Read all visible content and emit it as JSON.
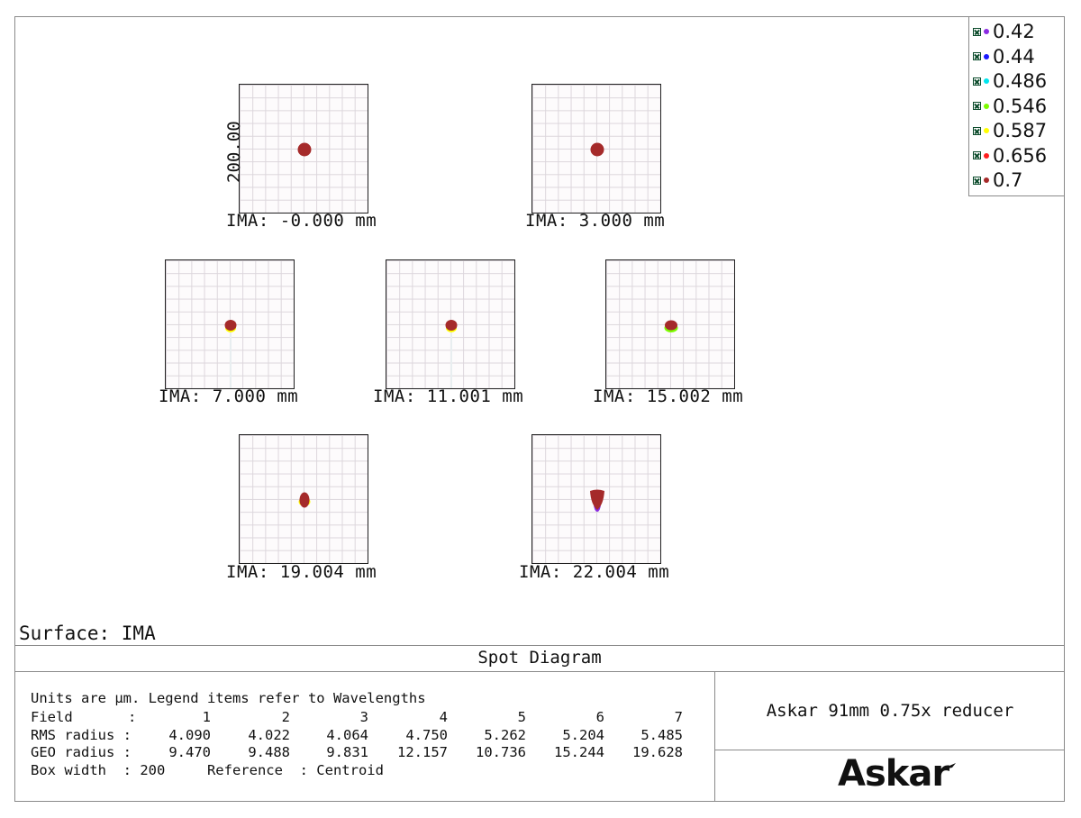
{
  "legend": {
    "items": [
      {
        "label": "0.42",
        "color": "#8a2be2"
      },
      {
        "label": "0.44",
        "color": "#1a1aff"
      },
      {
        "label": "0.486",
        "color": "#00e5ee"
      },
      {
        "label": "0.546",
        "color": "#7cfc00"
      },
      {
        "label": "0.587",
        "color": "#ffff00"
      },
      {
        "label": "0.656",
        "color": "#ff2020"
      },
      {
        "label": "0.7",
        "color": "#a52a2a"
      }
    ]
  },
  "scale_label": "200.00",
  "fields": [
    {
      "label": "IMA: -0.000 mm",
      "spot": "round"
    },
    {
      "label": "IMA: 3.000 mm",
      "spot": "round"
    },
    {
      "label": "IMA: 7.000 mm",
      "spot": "round-tail"
    },
    {
      "label": "IMA: 11.001 mm",
      "spot": "round-tail"
    },
    {
      "label": "IMA: 15.002 mm",
      "spot": "wide"
    },
    {
      "label": "IMA: 19.004 mm",
      "spot": "tall"
    },
    {
      "label": "IMA: 22.004 mm",
      "spot": "teardrop"
    }
  ],
  "surface": "Surface: IMA",
  "title": "Spot Diagram",
  "info": {
    "line1": "Units are µm. Legend items refer to Wavelengths",
    "field_label": "Field",
    "rms_label": "RMS radius :",
    "geo_label": "GEO radius :",
    "colon": ":",
    "field": [
      "1",
      "2",
      "3",
      "4",
      "5",
      "6",
      "7"
    ],
    "rms": [
      "4.090",
      "4.022",
      "4.064",
      "4.750",
      "5.262",
      "5.204",
      "5.485"
    ],
    "geo": [
      "9.470",
      "9.488",
      "9.831",
      "12.157",
      "10.736",
      "15.244",
      "19.628"
    ],
    "box_width": "Box width  : 200     Reference  : Centroid"
  },
  "lens_name": "Askar 91mm 0.75x reducer",
  "logo": "Askar"
}
